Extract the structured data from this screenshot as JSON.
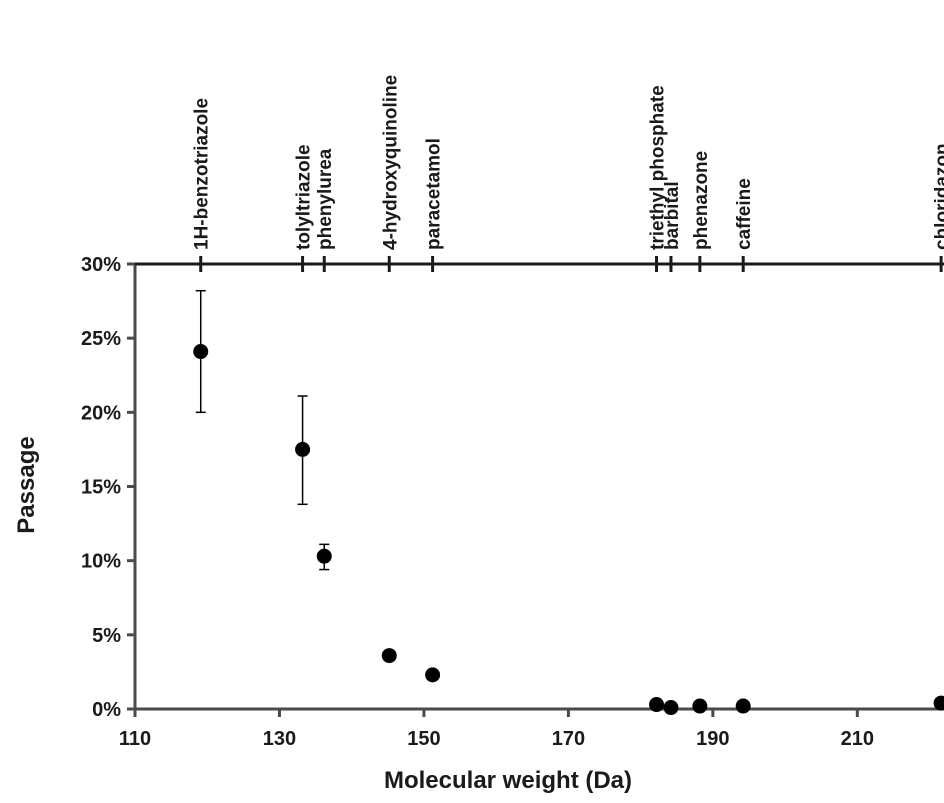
{
  "chart_data": {
    "type": "scatter",
    "xlabel": "Molecular weight (Da)",
    "ylabel": "Passage",
    "xlim": [
      110,
      222
    ],
    "ylim": [
      0,
      30
    ],
    "x_ticks": [
      110,
      130,
      150,
      170,
      190,
      210
    ],
    "y_ticks": [
      0,
      5,
      10,
      15,
      20,
      25,
      30
    ],
    "y_tick_format": "percent",
    "grid": false,
    "legend": "none",
    "colors": {
      "marker": "#000000",
      "axis": "#4a4a4a",
      "text": "#1a1a1a"
    },
    "points": [
      {
        "label": "1H-benzotriazole",
        "x": 119.1,
        "y": 24.1,
        "err_low": 20.0,
        "err_high": 28.2
      },
      {
        "label": "tolyltriazole",
        "x": 133.2,
        "y": 17.5,
        "err_low": 13.8,
        "err_high": 21.1
      },
      {
        "label": "phenylurea",
        "x": 136.2,
        "y": 10.3,
        "err_low": 9.4,
        "err_high": 11.1
      },
      {
        "label": "4-hydroxyquinoline",
        "x": 145.2,
        "y": 3.6
      },
      {
        "label": "paracetamol",
        "x": 151.2,
        "y": 2.3
      },
      {
        "label": "triethyl phosphate",
        "x": 182.2,
        "y": 0.3
      },
      {
        "label": "barbital",
        "x": 184.2,
        "y": 0.1
      },
      {
        "label": "phenazone",
        "x": 188.2,
        "y": 0.2
      },
      {
        "label": "caffeine",
        "x": 194.2,
        "y": 0.2
      },
      {
        "label": "chloridazon",
        "x": 221.6,
        "y": 0.4
      }
    ]
  }
}
